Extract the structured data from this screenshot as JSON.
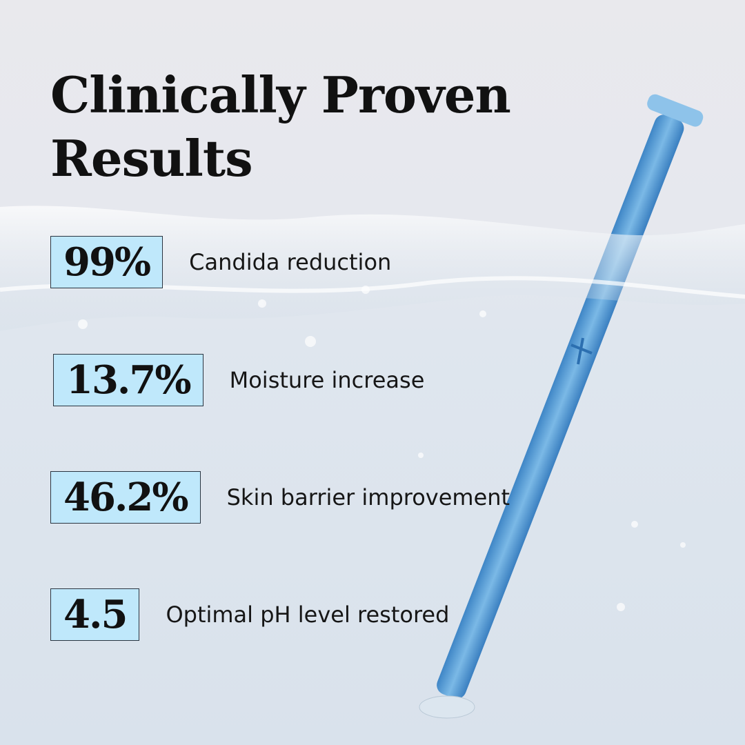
{
  "title": "Clinically Proven Results",
  "stats": [
    {
      "value": "99%",
      "label": "Candida reduction"
    },
    {
      "value": "13.7%",
      "label": "Moisture increase"
    },
    {
      "value": "46.2%",
      "label": "Skin barrier improvement"
    },
    {
      "value": "4.5",
      "label": "Optimal pH level restored"
    }
  ]
}
